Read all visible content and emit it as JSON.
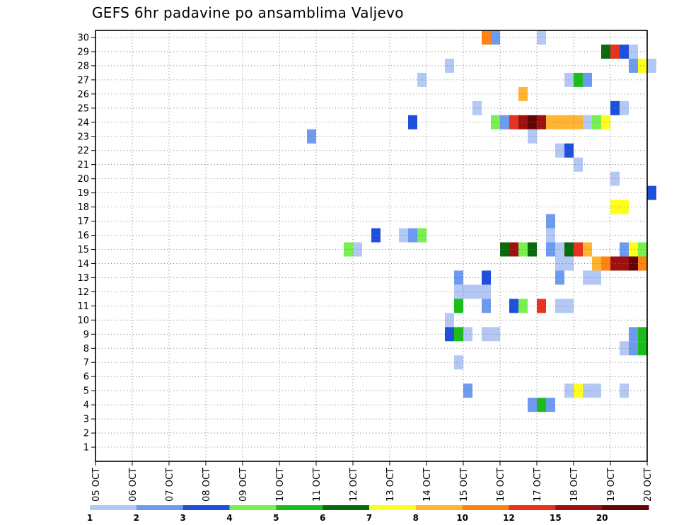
{
  "chart_data": {
    "type": "heatmap",
    "title": "GEFS 6hr padavine po ansamblima Valjevo",
    "x_tick_labels": [
      "05 OCT",
      "06 OCT",
      "07 OCT",
      "08 OCT",
      "09 OCT",
      "10 OCT",
      "11 OCT",
      "12 OCT",
      "13 OCT",
      "14 OCT",
      "15 OCT",
      "16 OCT",
      "17 OCT",
      "18 OCT",
      "19 OCT",
      "20 OCT"
    ],
    "y_tick_labels": [
      "1",
      "2",
      "3",
      "4",
      "5",
      "6",
      "7",
      "8",
      "9",
      "10",
      "11",
      "12",
      "13",
      "14",
      "15",
      "16",
      "17",
      "18",
      "19",
      "20",
      "21",
      "22",
      "23",
      "24",
      "25",
      "26",
      "27",
      "28",
      "29",
      "30"
    ],
    "xlim": [
      "05 OCT",
      "20 OCT"
    ],
    "ylim": [
      0,
      30
    ],
    "x_step_hours": 6,
    "grid": true,
    "legend": {
      "placement": "bottom",
      "labels": [
        "1",
        "2",
        "3",
        "4",
        "5",
        "6",
        "7",
        "8",
        "10",
        "12",
        "15",
        "20"
      ],
      "colors": [
        "#b4c8f5",
        "#6e9bf0",
        "#1e50dc",
        "#78f050",
        "#19be19",
        "#0a690a",
        "#ffff19",
        "#ffb432",
        "#ff8214",
        "#e6321e",
        "#a00f0f",
        "#640505"
      ]
    },
    "cells": [
      {
        "member": 30,
        "t": "15 OCT 12Z",
        "c": 8
      },
      {
        "member": 30,
        "t": "15 OCT 18Z",
        "c": 1
      },
      {
        "member": 30,
        "t": "17 OCT 00Z",
        "c": 0
      },
      {
        "member": 29,
        "t": "18 OCT 18Z",
        "c": 5
      },
      {
        "member": 29,
        "t": "19 OCT 00Z",
        "c": 9
      },
      {
        "member": 29,
        "t": "19 OCT 06Z",
        "c": 2
      },
      {
        "member": 29,
        "t": "19 OCT 12Z",
        "c": 0
      },
      {
        "member": 28,
        "t": "14 OCT 12Z",
        "c": 0
      },
      {
        "member": 28,
        "t": "19 OCT 12Z",
        "c": 1
      },
      {
        "member": 28,
        "t": "19 OCT 18Z",
        "c": 6
      },
      {
        "member": 28,
        "t": "20 OCT 00Z",
        "c": 0
      },
      {
        "member": 27,
        "t": "13 OCT 18Z",
        "c": 0
      },
      {
        "member": 27,
        "t": "17 OCT 18Z",
        "c": 0
      },
      {
        "member": 27,
        "t": "18 OCT 00Z",
        "c": 4
      },
      {
        "member": 27,
        "t": "18 OCT 06Z",
        "c": 1
      },
      {
        "member": 26,
        "t": "16 OCT 12Z",
        "c": 7
      },
      {
        "member": 25,
        "t": "15 OCT 06Z",
        "c": 0
      },
      {
        "member": 25,
        "t": "19 OCT 00Z",
        "c": 2
      },
      {
        "member": 25,
        "t": "19 OCT 06Z",
        "c": 0
      },
      {
        "member": 24,
        "t": "13 OCT 12Z",
        "c": 2
      },
      {
        "member": 24,
        "t": "15 OCT 18Z",
        "c": 3
      },
      {
        "member": 24,
        "t": "16 OCT 00Z",
        "c": 1
      },
      {
        "member": 24,
        "t": "16 OCT 06Z",
        "c": 9
      },
      {
        "member": 24,
        "t": "16 OCT 12Z",
        "c": 10
      },
      {
        "member": 24,
        "t": "16 OCT 18Z",
        "c": 11
      },
      {
        "member": 24,
        "t": "17 OCT 00Z",
        "c": 10
      },
      {
        "member": 24,
        "t": "17 OCT 06Z",
        "c": 7
      },
      {
        "member": 24,
        "t": "17 OCT 12Z",
        "c": 7
      },
      {
        "member": 24,
        "t": "17 OCT 18Z",
        "c": 7
      },
      {
        "member": 24,
        "t": "18 OCT 00Z",
        "c": 7
      },
      {
        "member": 24,
        "t": "18 OCT 06Z",
        "c": 0
      },
      {
        "member": 24,
        "t": "18 OCT 12Z",
        "c": 3
      },
      {
        "member": 24,
        "t": "18 OCT 18Z",
        "c": 6
      },
      {
        "member": 23,
        "t": "10 OCT 18Z",
        "c": 1
      },
      {
        "member": 23,
        "t": "16 OCT 18Z",
        "c": 0
      },
      {
        "member": 22,
        "t": "17 OCT 12Z",
        "c": 0
      },
      {
        "member": 22,
        "t": "17 OCT 18Z",
        "c": 2
      },
      {
        "member": 21,
        "t": "18 OCT 00Z",
        "c": 0
      },
      {
        "member": 20,
        "t": "19 OCT 00Z",
        "c": 0
      },
      {
        "member": 19,
        "t": "20 OCT 00Z",
        "c": 2
      },
      {
        "member": 18,
        "t": "19 OCT 00Z",
        "c": 6
      },
      {
        "member": 18,
        "t": "19 OCT 06Z",
        "c": 6
      },
      {
        "member": 17,
        "t": "17 OCT 06Z",
        "c": 1
      },
      {
        "member": 16,
        "t": "12 OCT 12Z",
        "c": 2
      },
      {
        "member": 16,
        "t": "13 OCT 06Z",
        "c": 0
      },
      {
        "member": 16,
        "t": "13 OCT 12Z",
        "c": 1
      },
      {
        "member": 16,
        "t": "13 OCT 18Z",
        "c": 3
      },
      {
        "member": 16,
        "t": "17 OCT 06Z",
        "c": 0
      },
      {
        "member": 15,
        "t": "11 OCT 18Z",
        "c": 3
      },
      {
        "member": 15,
        "t": "12 OCT 00Z",
        "c": 0
      },
      {
        "member": 15,
        "t": "16 OCT 00Z",
        "c": 5
      },
      {
        "member": 15,
        "t": "16 OCT 06Z",
        "c": 10
      },
      {
        "member": 15,
        "t": "16 OCT 12Z",
        "c": 3
      },
      {
        "member": 15,
        "t": "16 OCT 18Z",
        "c": 5
      },
      {
        "member": 15,
        "t": "17 OCT 06Z",
        "c": 1
      },
      {
        "member": 15,
        "t": "17 OCT 12Z",
        "c": 0
      },
      {
        "member": 15,
        "t": "17 OCT 18Z",
        "c": 5
      },
      {
        "member": 15,
        "t": "18 OCT 00Z",
        "c": 9
      },
      {
        "member": 15,
        "t": "18 OCT 06Z",
        "c": 7
      },
      {
        "member": 15,
        "t": "19 OCT 06Z",
        "c": 1
      },
      {
        "member": 15,
        "t": "19 OCT 12Z",
        "c": 6
      },
      {
        "member": 15,
        "t": "19 OCT 18Z",
        "c": 3
      },
      {
        "member": 14,
        "t": "17 OCT 12Z",
        "c": 0
      },
      {
        "member": 14,
        "t": "17 OCT 18Z",
        "c": 0
      },
      {
        "member": 14,
        "t": "18 OCT 12Z",
        "c": 7
      },
      {
        "member": 14,
        "t": "18 OCT 18Z",
        "c": 8
      },
      {
        "member": 14,
        "t": "19 OCT 00Z",
        "c": 10
      },
      {
        "member": 14,
        "t": "19 OCT 06Z",
        "c": 10
      },
      {
        "member": 14,
        "t": "19 OCT 12Z",
        "c": 11
      },
      {
        "member": 14,
        "t": "19 OCT 18Z",
        "c": 8
      },
      {
        "member": 13,
        "t": "14 OCT 18Z",
        "c": 1
      },
      {
        "member": 13,
        "t": "15 OCT 12Z",
        "c": 2
      },
      {
        "member": 13,
        "t": "17 OCT 12Z",
        "c": 1
      },
      {
        "member": 13,
        "t": "18 OCT 06Z",
        "c": 0
      },
      {
        "member": 13,
        "t": "18 OCT 12Z",
        "c": 0
      },
      {
        "member": 12,
        "t": "14 OCT 18Z",
        "c": 0
      },
      {
        "member": 12,
        "t": "15 OCT 00Z",
        "c": 0
      },
      {
        "member": 12,
        "t": "15 OCT 06Z",
        "c": 0
      },
      {
        "member": 12,
        "t": "15 OCT 12Z",
        "c": 0
      },
      {
        "member": 11,
        "t": "14 OCT 18Z",
        "c": 4
      },
      {
        "member": 11,
        "t": "15 OCT 12Z",
        "c": 1
      },
      {
        "member": 11,
        "t": "16 OCT 06Z",
        "c": 2
      },
      {
        "member": 11,
        "t": "16 OCT 12Z",
        "c": 3
      },
      {
        "member": 11,
        "t": "17 OCT 00Z",
        "c": 9
      },
      {
        "member": 11,
        "t": "17 OCT 12Z",
        "c": 0
      },
      {
        "member": 11,
        "t": "17 OCT 18Z",
        "c": 0
      },
      {
        "member": 10,
        "t": "14 OCT 12Z",
        "c": 0
      },
      {
        "member": 9,
        "t": "14 OCT 12Z",
        "c": 2
      },
      {
        "member": 9,
        "t": "14 OCT 18Z",
        "c": 4
      },
      {
        "member": 9,
        "t": "15 OCT 00Z",
        "c": 0
      },
      {
        "member": 9,
        "t": "15 OCT 12Z",
        "c": 0
      },
      {
        "member": 9,
        "t": "15 OCT 18Z",
        "c": 0
      },
      {
        "member": 9,
        "t": "19 OCT 12Z",
        "c": 1
      },
      {
        "member": 9,
        "t": "19 OCT 18Z",
        "c": 4
      },
      {
        "member": 8,
        "t": "19 OCT 06Z",
        "c": 0
      },
      {
        "member": 8,
        "t": "19 OCT 12Z",
        "c": 1
      },
      {
        "member": 8,
        "t": "19 OCT 18Z",
        "c": 4
      },
      {
        "member": 7,
        "t": "14 OCT 18Z",
        "c": 0
      },
      {
        "member": 5,
        "t": "15 OCT 00Z",
        "c": 1
      },
      {
        "member": 5,
        "t": "17 OCT 18Z",
        "c": 0
      },
      {
        "member": 5,
        "t": "18 OCT 00Z",
        "c": 6
      },
      {
        "member": 5,
        "t": "18 OCT 06Z",
        "c": 0
      },
      {
        "member": 5,
        "t": "18 OCT 12Z",
        "c": 0
      },
      {
        "member": 5,
        "t": "19 OCT 06Z",
        "c": 0
      },
      {
        "member": 4,
        "t": "16 OCT 18Z",
        "c": 1
      },
      {
        "member": 4,
        "t": "17 OCT 00Z",
        "c": 4
      },
      {
        "member": 4,
        "t": "17 OCT 06Z",
        "c": 1
      }
    ]
  }
}
